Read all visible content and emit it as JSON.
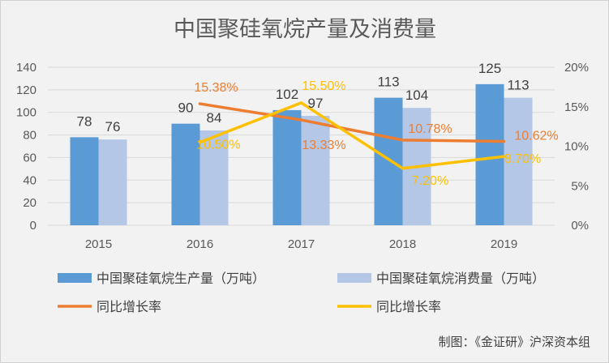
{
  "chart_data": {
    "type": "bar",
    "title": "中国聚硅氧烷产量及消费量",
    "categories": [
      "2015",
      "2016",
      "2017",
      "2018",
      "2019"
    ],
    "y_left": {
      "min": 0,
      "max": 140,
      "step": 20,
      "ticks": [
        "0",
        "20",
        "40",
        "60",
        "80",
        "100",
        "120",
        "140"
      ]
    },
    "y_right": {
      "min": 0,
      "max": 20,
      "step": 5,
      "ticks": [
        "0%",
        "5%",
        "10%",
        "15%",
        "20%"
      ]
    },
    "grid": true,
    "legend_position": "bottom",
    "series": [
      {
        "name": "中国聚硅氧烷生产量（万吨）",
        "type": "bar",
        "axis": "left",
        "color": "#5b9bd5",
        "values": [
          78,
          90,
          102,
          113,
          125
        ],
        "labels": [
          "78",
          "90",
          "102",
          "113",
          "125"
        ]
      },
      {
        "name": "中国聚硅氧烷消费量（万吨）",
        "type": "bar",
        "axis": "left",
        "color": "#b4c7e7",
        "values": [
          76,
          84,
          97,
          104,
          113
        ],
        "labels": [
          "76",
          "84",
          "97",
          "104",
          "113"
        ]
      },
      {
        "name": "同比增长率",
        "type": "line",
        "axis": "right",
        "color": "#ed7d31",
        "values": [
          null,
          15.38,
          13.33,
          10.78,
          10.62
        ],
        "labels": [
          "",
          "15.38%",
          "13.33%",
          "10.78%",
          "10.62%"
        ]
      },
      {
        "name": "同比增长率",
        "type": "line",
        "axis": "right",
        "color": "#ffc000",
        "values": [
          null,
          10.5,
          15.5,
          7.2,
          8.7
        ],
        "labels": [
          "",
          "10.50%",
          "15.50%",
          "7.20%",
          "8.70%"
        ]
      }
    ]
  },
  "credit": "制图：《金证研》沪深资本组"
}
